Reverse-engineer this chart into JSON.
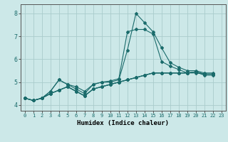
{
  "title": "",
  "xlabel": "Humidex (Indice chaleur)",
  "background_color": "#cce8e8",
  "grid_color": "#aacccc",
  "line_color": "#1a6b6b",
  "xlim": [
    -0.5,
    23.5
  ],
  "ylim": [
    3.75,
    8.4
  ],
  "yticks": [
    4,
    5,
    6,
    7,
    8
  ],
  "xticks": [
    0,
    1,
    2,
    3,
    4,
    5,
    6,
    7,
    8,
    9,
    10,
    11,
    12,
    13,
    14,
    15,
    16,
    17,
    18,
    19,
    20,
    21,
    22,
    23
  ],
  "series": [
    [
      4.3,
      4.2,
      4.3,
      4.6,
      5.1,
      4.9,
      4.7,
      4.5,
      4.9,
      5.0,
      5.05,
      5.15,
      7.2,
      7.3,
      7.3,
      7.1,
      5.9,
      5.7,
      5.55,
      5.4,
      5.45,
      5.35,
      5.35
    ],
    [
      4.3,
      4.2,
      4.3,
      4.6,
      5.1,
      4.9,
      4.8,
      4.6,
      4.9,
      5.0,
      5.0,
      5.1,
      6.4,
      8.0,
      7.6,
      7.2,
      6.5,
      5.85,
      5.65,
      5.5,
      5.5,
      5.4,
      5.4
    ],
    [
      4.3,
      4.2,
      4.3,
      4.5,
      4.65,
      4.8,
      4.6,
      4.4,
      4.7,
      4.8,
      4.9,
      5.0,
      5.1,
      5.2,
      5.3,
      5.4,
      5.4,
      5.4,
      5.4,
      5.4,
      5.45,
      5.35,
      5.35
    ],
    [
      4.3,
      4.2,
      4.3,
      4.5,
      4.65,
      4.8,
      4.6,
      4.4,
      4.7,
      4.8,
      4.9,
      5.0,
      5.1,
      5.2,
      5.3,
      5.4,
      5.4,
      5.4,
      5.4,
      5.4,
      5.4,
      5.35,
      5.35
    ],
    [
      4.3,
      4.2,
      4.3,
      4.5,
      4.65,
      4.8,
      4.6,
      4.4,
      4.7,
      4.8,
      4.9,
      5.0,
      5.1,
      5.2,
      5.3,
      5.4,
      5.4,
      5.4,
      5.4,
      5.4,
      5.45,
      5.3,
      5.3
    ]
  ]
}
